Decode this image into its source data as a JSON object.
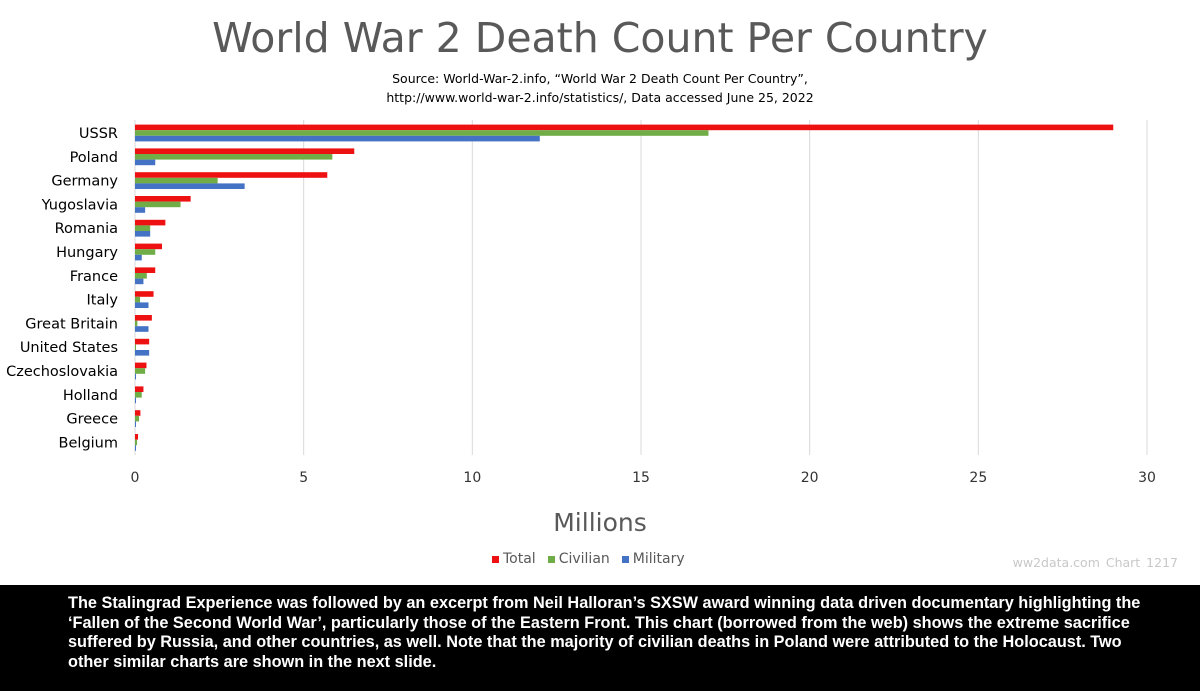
{
  "chart_data": {
    "type": "bar",
    "orientation": "horizontal",
    "title": "World War 2 Death Count Per Country",
    "subtitle_lines": [
      "Source: World-War-2.info, “World War 2 Death Count Per Country”,",
      "http://www.world-war-2.info/statistics/, Data accessed June 25, 2022"
    ],
    "xlabel": "Millions",
    "ylabel": "",
    "xlim": [
      0,
      30
    ],
    "x_ticks": [
      "0",
      "5",
      "10",
      "15",
      "20",
      "25",
      "30"
    ],
    "grid": "vertical",
    "legend_position": "bottom",
    "categories": [
      "USSR",
      "Poland",
      "Germany",
      "Yugoslavia",
      "Romania",
      "Hungary",
      "France",
      "Italy",
      "Great Britain",
      "United States",
      "Czechoslovakia",
      "Holland",
      "Greece",
      "Belgium"
    ],
    "series": [
      {
        "name": "Total",
        "color": "#ee1111",
        "values": [
          29.0,
          6.5,
          5.7,
          1.65,
          0.9,
          0.8,
          0.6,
          0.55,
          0.5,
          0.42,
          0.34,
          0.25,
          0.16,
          0.09
        ]
      },
      {
        "name": "Civilian",
        "color": "#70ad47",
        "values": [
          17.0,
          5.85,
          2.45,
          1.35,
          0.45,
          0.6,
          0.35,
          0.15,
          0.07,
          0.01,
          0.3,
          0.2,
          0.12,
          0.06
        ]
      },
      {
        "name": "Military",
        "color": "#4472c4",
        "values": [
          12.0,
          0.6,
          3.25,
          0.3,
          0.45,
          0.2,
          0.25,
          0.4,
          0.4,
          0.42,
          0.03,
          0.03,
          0.03,
          0.03
        ]
      }
    ]
  },
  "watermark": "ww2data.com   Chart 1217",
  "caption": "The Stalingrad Experience was followed by an excerpt from Neil Halloran’s SXSW award winning data driven documentary highlighting the ‘Fallen of the Second World War’, particularly those of the Eastern Front. This chart (borrowed from the web) shows the extreme sacrifice suffered by Russia, and other countries, as well. Note that the majority of civilian deaths in Poland were attributed to the Holocaust. Two other similar charts are shown in the next slide."
}
